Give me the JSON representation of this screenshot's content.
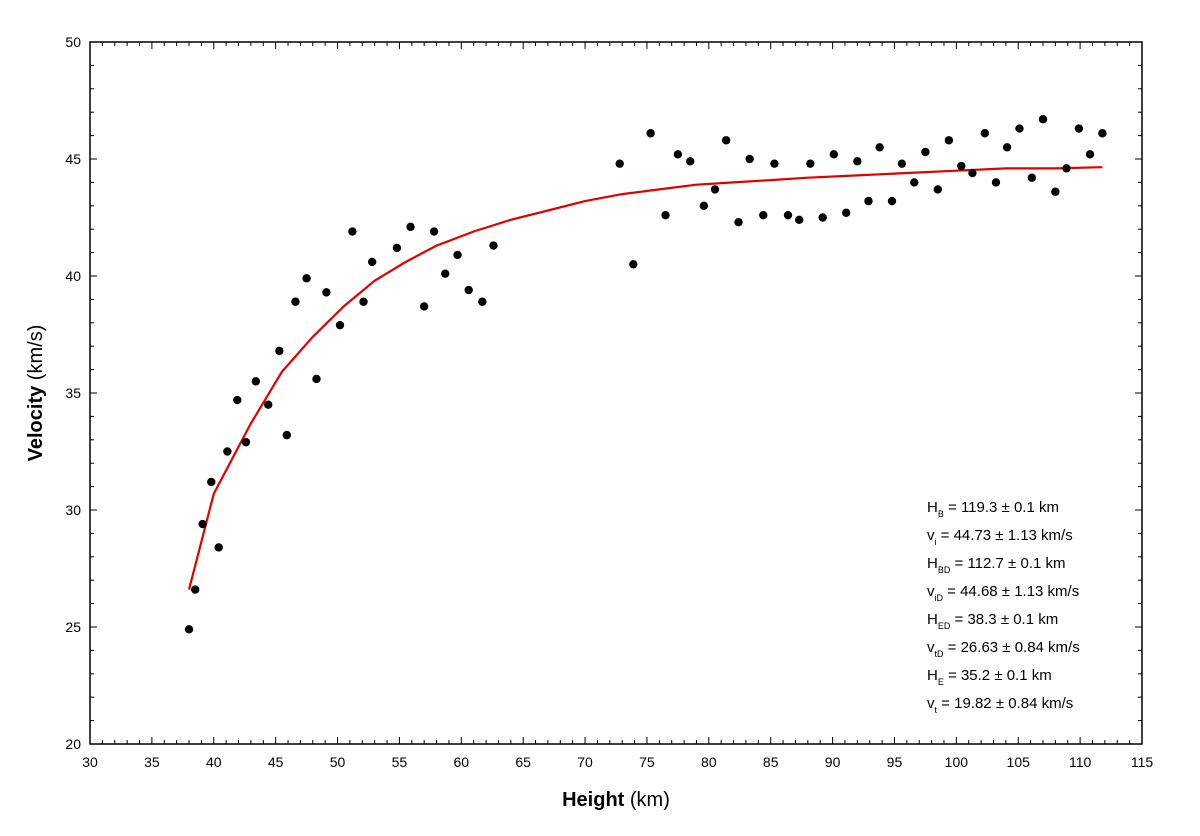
{
  "chart_data": {
    "type": "scatter",
    "xlabel": "Height",
    "xlabel_unit": "(km)",
    "ylabel": "Velocity",
    "ylabel_unit": "(km/s)",
    "xlim": [
      30,
      115
    ],
    "ylim": [
      20,
      50
    ],
    "xticks": [
      30,
      35,
      40,
      45,
      50,
      55,
      60,
      65,
      70,
      75,
      80,
      85,
      90,
      95,
      100,
      105,
      110,
      115
    ],
    "yticks": [
      20,
      25,
      30,
      35,
      40,
      45,
      50
    ],
    "grid": false,
    "series": [
      {
        "kind": "scatter",
        "color": "#000000",
        "points": [
          [
            38.0,
            24.9
          ],
          [
            38.5,
            26.6
          ],
          [
            39.1,
            29.4
          ],
          [
            39.8,
            31.2
          ],
          [
            40.4,
            28.4
          ],
          [
            41.1,
            32.5
          ],
          [
            41.9,
            34.7
          ],
          [
            42.6,
            32.9
          ],
          [
            43.4,
            35.5
          ],
          [
            44.4,
            34.5
          ],
          [
            45.3,
            36.8
          ],
          [
            45.9,
            33.2
          ],
          [
            46.6,
            38.9
          ],
          [
            47.5,
            39.9
          ],
          [
            48.3,
            35.6
          ],
          [
            49.1,
            39.3
          ],
          [
            50.2,
            37.9
          ],
          [
            51.2,
            41.9
          ],
          [
            52.1,
            38.9
          ],
          [
            52.8,
            40.6
          ],
          [
            54.8,
            41.2
          ],
          [
            55.9,
            42.1
          ],
          [
            57.0,
            38.7
          ],
          [
            57.8,
            41.9
          ],
          [
            58.7,
            40.1
          ],
          [
            59.7,
            40.9
          ],
          [
            60.6,
            39.4
          ],
          [
            61.7,
            38.9
          ],
          [
            62.6,
            41.3
          ],
          [
            72.8,
            44.8
          ],
          [
            73.9,
            40.5
          ],
          [
            75.3,
            46.1
          ],
          [
            76.5,
            42.6
          ],
          [
            77.5,
            45.2
          ],
          [
            78.5,
            44.9
          ],
          [
            79.6,
            43.0
          ],
          [
            80.5,
            43.7
          ],
          [
            81.4,
            45.8
          ],
          [
            82.4,
            42.3
          ],
          [
            83.3,
            45.0
          ],
          [
            84.4,
            42.6
          ],
          [
            85.3,
            44.8
          ],
          [
            86.4,
            42.6
          ],
          [
            87.3,
            42.4
          ],
          [
            88.2,
            44.8
          ],
          [
            89.2,
            42.5
          ],
          [
            90.1,
            45.2
          ],
          [
            91.1,
            42.7
          ],
          [
            92.0,
            44.9
          ],
          [
            92.9,
            43.2
          ],
          [
            93.8,
            45.5
          ],
          [
            94.8,
            43.2
          ],
          [
            95.6,
            44.8
          ],
          [
            96.6,
            44.0
          ],
          [
            97.5,
            45.3
          ],
          [
            98.5,
            43.7
          ],
          [
            99.4,
            45.8
          ],
          [
            100.4,
            44.7
          ],
          [
            101.3,
            44.4
          ],
          [
            102.3,
            46.1
          ],
          [
            103.2,
            44.0
          ],
          [
            104.1,
            45.5
          ],
          [
            105.1,
            46.3
          ],
          [
            106.1,
            44.2
          ],
          [
            107.0,
            46.7
          ],
          [
            108.0,
            43.6
          ],
          [
            108.9,
            44.6
          ],
          [
            109.9,
            46.3
          ],
          [
            110.8,
            45.2
          ],
          [
            111.8,
            46.1
          ]
        ]
      },
      {
        "kind": "line",
        "color": "#e00000",
        "points": [
          [
            38.0,
            26.6
          ],
          [
            40.0,
            30.7
          ],
          [
            43.0,
            33.7
          ],
          [
            45.5,
            35.9
          ],
          [
            48.0,
            37.4
          ],
          [
            50.5,
            38.7
          ],
          [
            53.0,
            39.8
          ],
          [
            55.5,
            40.6
          ],
          [
            58.0,
            41.3
          ],
          [
            61.0,
            41.9
          ],
          [
            64.0,
            42.4
          ],
          [
            67.0,
            42.8
          ],
          [
            70.0,
            43.2
          ],
          [
            73.0,
            43.5
          ],
          [
            76.0,
            43.7
          ],
          [
            79.0,
            43.9
          ],
          [
            82.0,
            44.0
          ],
          [
            85.0,
            44.1
          ],
          [
            88.0,
            44.2
          ],
          [
            92.0,
            44.3
          ],
          [
            96.0,
            44.4
          ],
          [
            100.0,
            44.5
          ],
          [
            104.0,
            44.6
          ],
          [
            108.0,
            44.6
          ],
          [
            111.8,
            44.65
          ]
        ]
      }
    ],
    "annotations": [
      {
        "main": "H",
        "sub": "B",
        "rest": " = 119.3 ± 0.1 km"
      },
      {
        "main": "v",
        "sub": "i",
        "rest": " = 44.73 ± 1.13 km/s"
      },
      {
        "main": "H",
        "sub": "BD",
        "rest": " = 112.7 ± 0.1 km"
      },
      {
        "main": "v",
        "sub": "iD",
        "rest": " = 44.68 ± 1.13 km/s"
      },
      {
        "main": "H",
        "sub": "ED",
        "rest": " = 38.3 ± 0.1 km"
      },
      {
        "main": "v",
        "sub": "tD",
        "rest": " = 26.63 ± 0.84 km/s"
      },
      {
        "main": "H",
        "sub": "E",
        "rest": " = 35.2 ± 0.1 km"
      },
      {
        "main": "v",
        "sub": "t",
        "rest": " = 19.82 ± 0.84 km/s"
      }
    ]
  }
}
